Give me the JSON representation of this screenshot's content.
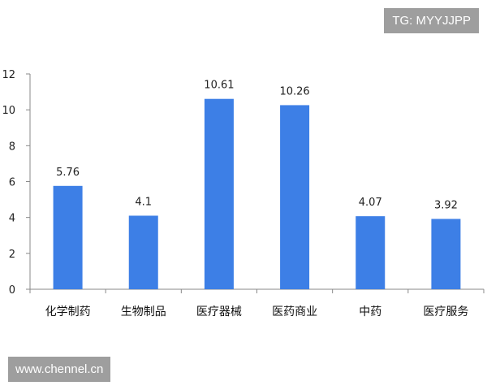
{
  "chart_data": {
    "type": "bar",
    "title": "",
    "xlabel": "",
    "ylabel": "",
    "categories": [
      "化学制药",
      "生物制品",
      "医疗器械",
      "医药商业",
      "中药",
      "医疗服务"
    ],
    "values": [
      5.76,
      4.1,
      10.61,
      10.26,
      4.07,
      3.92
    ],
    "value_labels": [
      "5.76",
      "4.1",
      "10.61",
      "10.26",
      "4.07",
      "3.92"
    ],
    "ylim": [
      0,
      12
    ],
    "yticks": [
      "0",
      "2",
      "4",
      "6",
      "8",
      "10",
      "12"
    ],
    "grid": false,
    "legend": "none",
    "bar_color": "#3d7fe6"
  },
  "watermarks": {
    "top": "TG: MYYJJPP",
    "bottom": "www.chennel.cn"
  }
}
